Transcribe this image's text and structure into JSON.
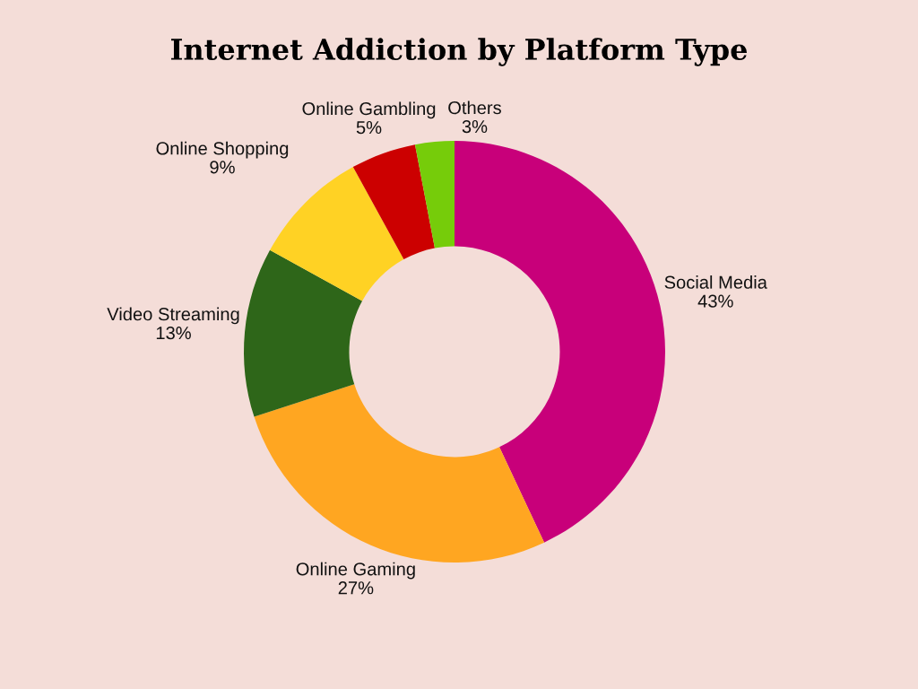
{
  "chart_data": {
    "type": "donut",
    "title": "Internet Addiction by Platform Type",
    "categories": [
      "Social Media",
      "Online Gaming",
      "Video Streaming",
      "Online Shopping",
      "Online Gambling",
      "Others"
    ],
    "values": [
      43,
      27,
      13,
      9,
      5,
      3
    ],
    "value_labels": [
      "43%",
      "27%",
      "13%",
      "9%",
      "5%",
      "3%"
    ],
    "colors": [
      "#c8007a",
      "#ffa621",
      "#2e6619",
      "#ffd224",
      "#cc0000",
      "#76cc0a"
    ]
  }
}
